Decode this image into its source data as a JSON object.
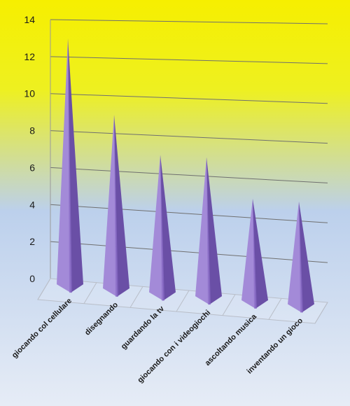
{
  "chart_data": {
    "type": "bar",
    "bar_shape": "pyramid",
    "title": "",
    "xlabel": "",
    "ylabel": "",
    "categories": [
      "giocando col cellulare",
      "disegnando",
      "guardando la tv",
      "giocando con i videogiochi",
      "ascoltando musica",
      "inventando un gioco"
    ],
    "values": [
      13,
      9,
      7,
      7,
      5,
      5
    ],
    "ylim": [
      0,
      14
    ],
    "yticks": [
      "0",
      "2",
      "4",
      "6",
      "8",
      "10",
      "12",
      "14"
    ],
    "grid": true,
    "legend": "none",
    "colors": {
      "bar_light": "#a38ad8",
      "bar_mid": "#8a6cc8",
      "bar_dark": "#6a4fa6",
      "background_top": "#f6ef00",
      "background_mid": "#bcd0ec",
      "background_bottom": "#e6ecf6",
      "grid": "#6f6f6f"
    }
  }
}
